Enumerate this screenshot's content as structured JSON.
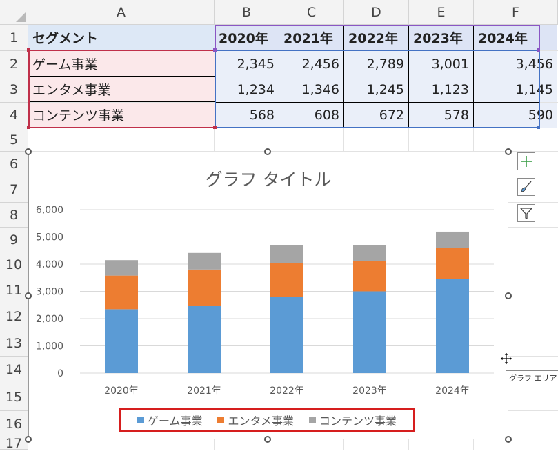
{
  "sheet": {
    "columns": [
      "A",
      "B",
      "C",
      "D",
      "E",
      "F"
    ],
    "rows": [
      "1",
      "2",
      "3",
      "4",
      "5",
      "6",
      "7",
      "8",
      "9",
      "10",
      "11",
      "12",
      "13",
      "14",
      "15",
      "16",
      "17"
    ],
    "header_row": {
      "segment_label": "セグメント",
      "years": [
        "2020年",
        "2021年",
        "2022年",
        "2023年",
        "2024年"
      ]
    },
    "data_rows": [
      {
        "segment": "ゲーム事業",
        "values": [
          "2,345",
          "2,456",
          "2,789",
          "3,001",
          "3,456"
        ]
      },
      {
        "segment": "エンタメ事業",
        "values": [
          "1,234",
          "1,346",
          "1,245",
          "1,123",
          "1,145"
        ]
      },
      {
        "segment": "コンテンツ事業",
        "values": [
          "568",
          "608",
          "672",
          "578",
          "590"
        ]
      }
    ]
  },
  "chart_data": {
    "type": "bar",
    "stacked": true,
    "title": "グラフ タイトル",
    "categories": [
      "2020年",
      "2021年",
      "2022年",
      "2023年",
      "2024年"
    ],
    "series": [
      {
        "name": "ゲーム事業",
        "values": [
          2345,
          2456,
          2789,
          3001,
          3456
        ],
        "color": "#5b9bd5"
      },
      {
        "name": "エンタメ事業",
        "values": [
          1234,
          1346,
          1245,
          1123,
          1145
        ],
        "color": "#ed7d31"
      },
      {
        "name": "コンテンツ事業",
        "values": [
          568,
          608,
          672,
          578,
          590
        ],
        "color": "#a5a5a5"
      }
    ],
    "yticks": [
      "0",
      "1,000",
      "2,000",
      "3,000",
      "4,000",
      "5,000",
      "6,000"
    ],
    "ylim": [
      0,
      6000
    ],
    "grid": true,
    "legend_position": "bottom"
  },
  "chart_buttons": {
    "elements_icon": "plus-icon",
    "styles_icon": "brush-icon",
    "filters_icon": "funnel-icon"
  },
  "tooltip": {
    "text": "グラフ エリア"
  },
  "colors": {
    "accent_red": "#d61e1e",
    "range_blue": "#4472c4",
    "range_purple": "#8a56c4",
    "range_red": "#c0304a"
  }
}
